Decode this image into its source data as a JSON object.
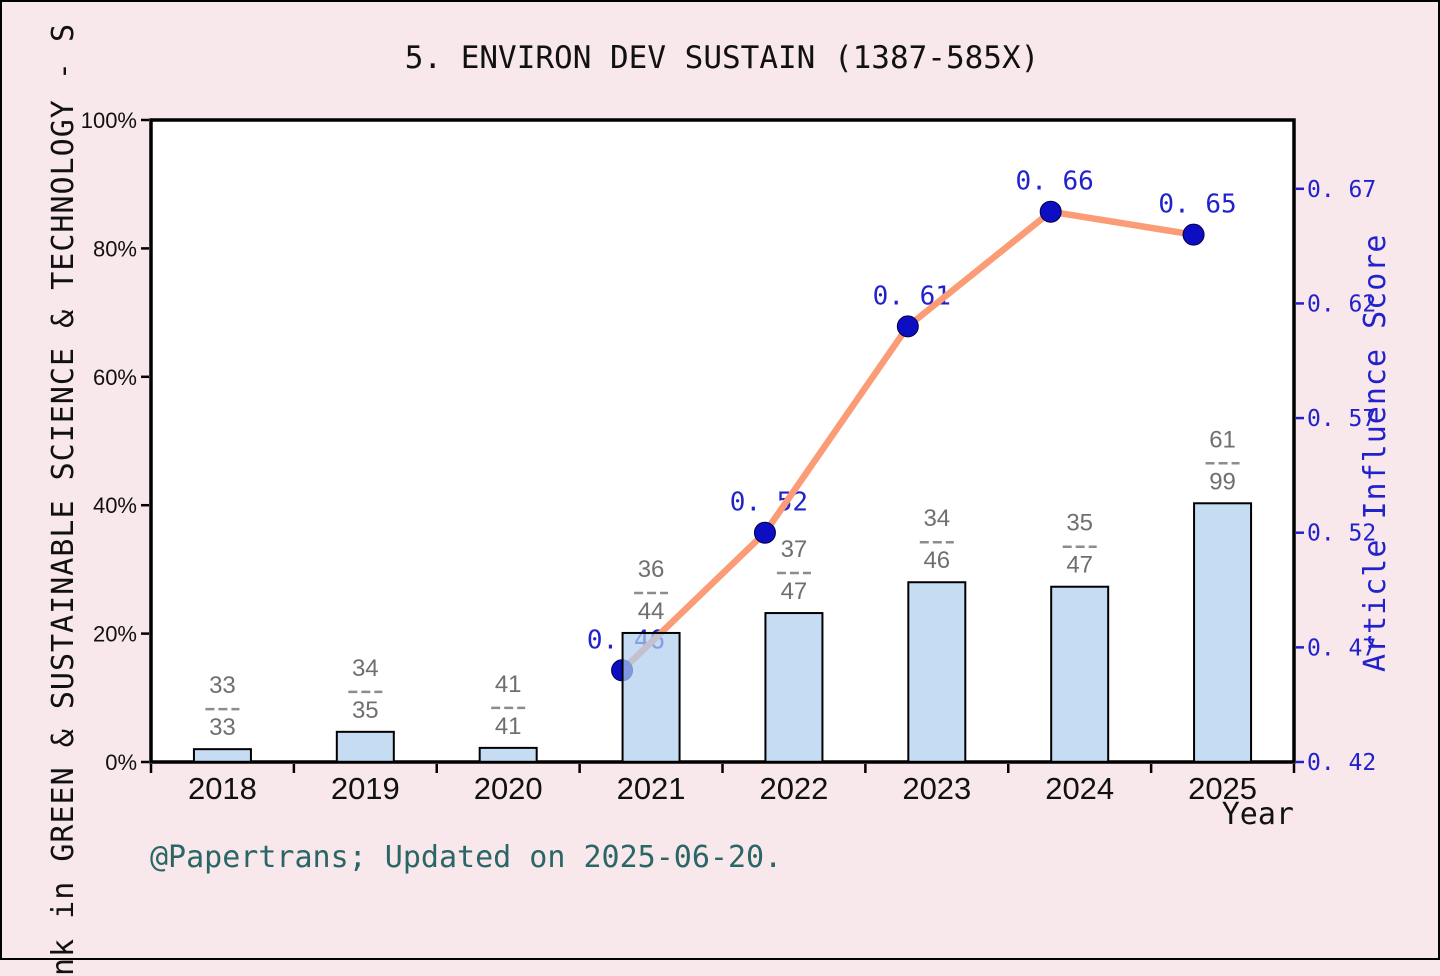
{
  "figure": {
    "caption": "@Papertrans; Updated on 2025-06-20."
  },
  "colors": {
    "background": "#F8E7EB",
    "plot_background": "#FFFFFF",
    "axis": "#000000",
    "bar_fill": "#AFCFEE",
    "bar_edge": "#000000",
    "line": "#FB9C77",
    "marker": "#0D0DC2",
    "blue_text": "#2222CC",
    "fraction_text": "#6F6F6F",
    "caption_text": "#2A6666"
  },
  "chart_data": {
    "type": "combo",
    "title": "5. ENVIRON DEV SUSTAIN (1387-585X)",
    "xlabel": "Year",
    "ylabel_left_visible": "nk in GREEN & SUSTAINABLE SCIENCE & TECHNOLOGY - S",
    "ylabel_right": "Article Influence Score",
    "categories": [
      "2018",
      "2019",
      "2020",
      "2021",
      "2022",
      "2023",
      "2024",
      "2025"
    ],
    "series": [
      {
        "name": "rank-percentile-bars",
        "type": "bar",
        "axis": "left",
        "unit": "%",
        "values": [
          2.0,
          4.7,
          2.2,
          20.1,
          23.2,
          28.0,
          27.3,
          40.3
        ],
        "fraction_labels": [
          {
            "numerator": "33",
            "denominator": "33"
          },
          {
            "numerator": "34",
            "denominator": "35"
          },
          {
            "numerator": "41",
            "denominator": "41"
          },
          {
            "numerator": "36",
            "denominator": "44"
          },
          {
            "numerator": "37",
            "denominator": "47"
          },
          {
            "numerator": "34",
            "denominator": "46"
          },
          {
            "numerator": "35",
            "denominator": "47"
          },
          {
            "numerator": "61",
            "denominator": "99"
          }
        ]
      },
      {
        "name": "article-influence-score-line",
        "type": "line",
        "axis": "right",
        "values": [
          null,
          null,
          null,
          0.46,
          0.52,
          0.61,
          0.66,
          0.65
        ]
      }
    ],
    "left_axis": {
      "min": 0,
      "max": 100,
      "ticks": [
        0,
        20,
        40,
        60,
        80,
        100
      ],
      "tick_labels": [
        "0%",
        "20%",
        "40%",
        "60%",
        "80%",
        "100%"
      ]
    },
    "right_axis": {
      "min": 0.42,
      "max": 0.7,
      "ticks": [
        0.42,
        0.47,
        0.52,
        0.57,
        0.62,
        0.67
      ]
    },
    "grid": false,
    "legend": false
  }
}
